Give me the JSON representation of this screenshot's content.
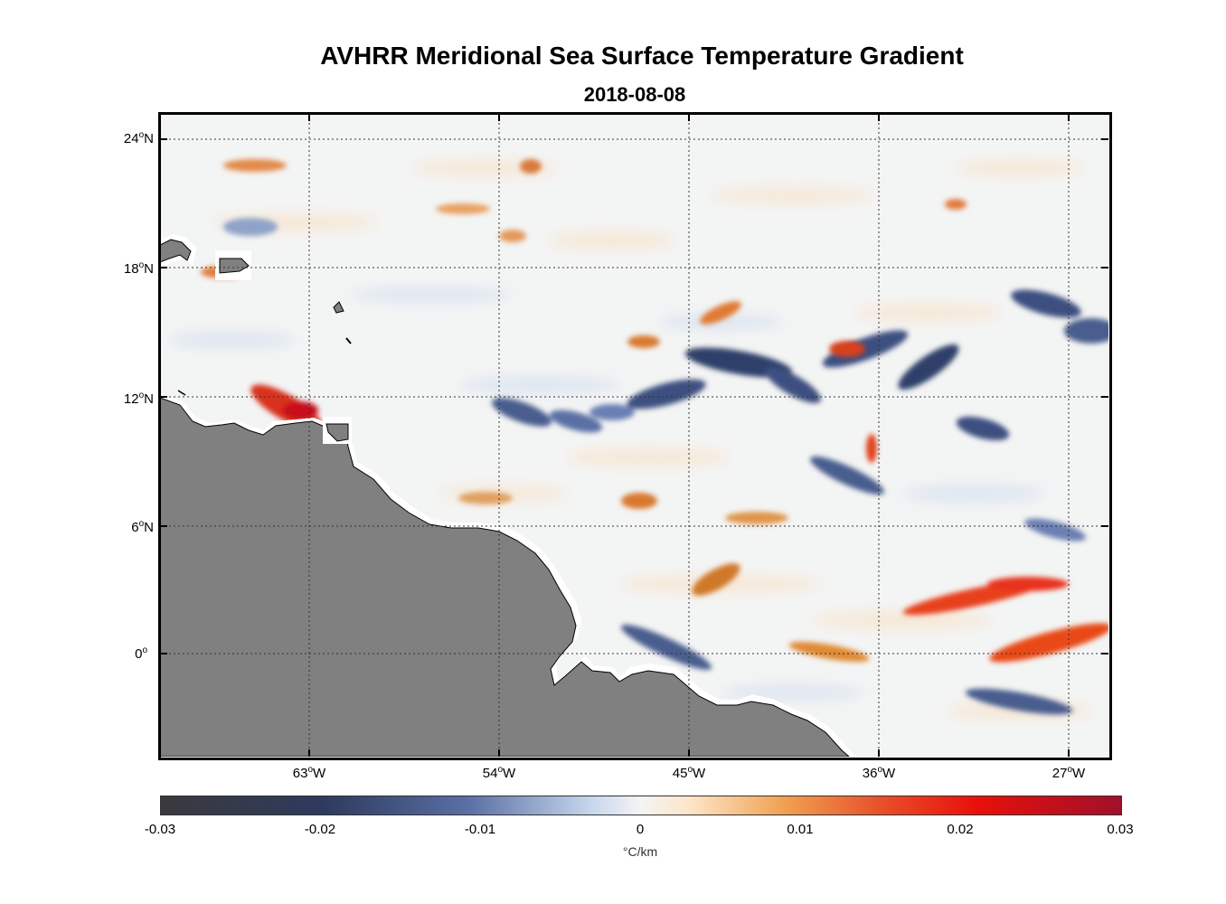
{
  "title": "AVHRR Meridional Sea Surface Temperature Gradient",
  "date": "2018-08-08",
  "latitude_labels": [
    "24",
    "18",
    "12",
    "6",
    "0"
  ],
  "latitude_suffix": [
    "N",
    "N",
    "N",
    "N",
    ""
  ],
  "longitude_labels": [
    "63",
    "54",
    "45",
    "36",
    "27"
  ],
  "longitude_suffix": "W",
  "colorbar": {
    "ticks": [
      "-0.03",
      "-0.02",
      "-0.01",
      "0",
      "0.01",
      "0.02",
      "0.03"
    ],
    "unit_symbol": "°C/km"
  },
  "colors": {
    "land": "#808080",
    "background": "#f4f4f4"
  },
  "chart_data": {
    "type": "heatmap",
    "title": "AVHRR Meridional Sea Surface Temperature Gradient",
    "subtitle": "2018-08-08",
    "x_range_deg_lon": [
      -70,
      -25
    ],
    "y_range_deg_lat": [
      -5,
      25
    ],
    "colorbar_range": [
      -0.03,
      0.03
    ],
    "unit": "°C/km",
    "colormap": "balance (blue-white-red)"
  }
}
